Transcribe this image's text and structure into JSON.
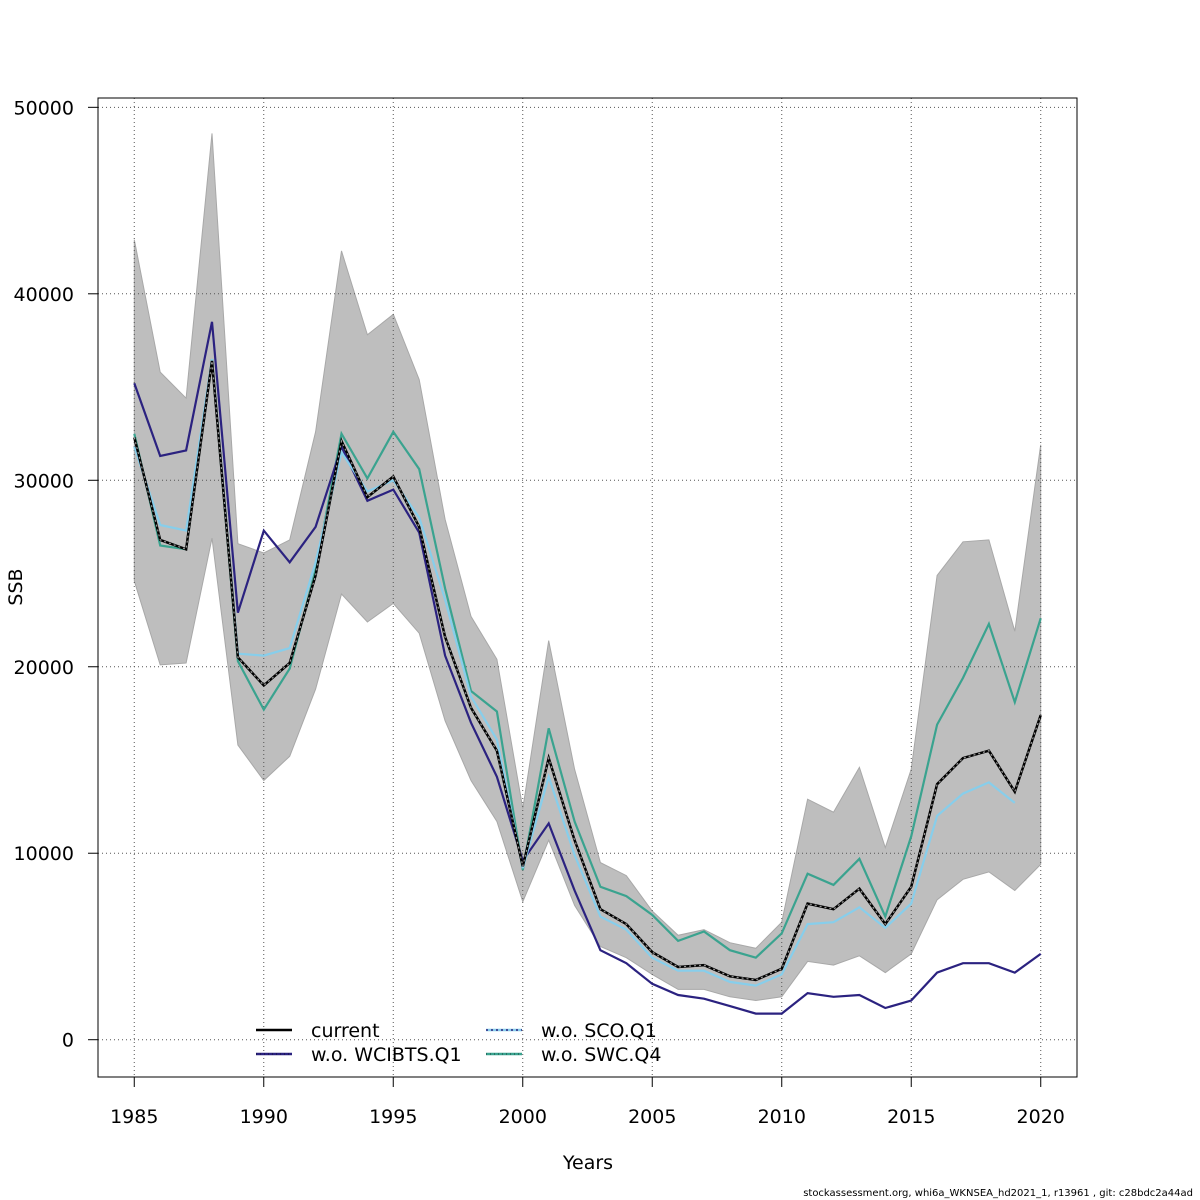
{
  "chart_data": {
    "type": "line",
    "xlabel": "Years",
    "ylabel": "SSB",
    "xlim": [
      1983.6,
      2021.4
    ],
    "ylim": [
      -2000,
      50500
    ],
    "x_ticks": [
      1985,
      1990,
      1995,
      2000,
      2005,
      2010,
      2015,
      2020
    ],
    "y_ticks": [
      0,
      10000,
      20000,
      30000,
      40000,
      50000
    ],
    "grid": true,
    "legend_position": "bottom-left",
    "x": [
      1985,
      1986,
      1987,
      1988,
      1989,
      1990,
      1991,
      1992,
      1993,
      1994,
      1995,
      1996,
      1997,
      1998,
      1999,
      2000,
      2001,
      2002,
      2003,
      2004,
      2005,
      2006,
      2007,
      2008,
      2009,
      2010,
      2011,
      2012,
      2013,
      2014,
      2015,
      2016,
      2017,
      2018,
      2019,
      2020
    ],
    "band": {
      "color": "#bebebe",
      "upper": [
        42900,
        35800,
        34400,
        48600,
        26600,
        26100,
        26800,
        32600,
        42300,
        37800,
        38900,
        35400,
        27900,
        22700,
        20400,
        12400,
        21400,
        14500,
        9500,
        8800,
        6900,
        5600,
        5900,
        5200,
        4900,
        6300,
        12900,
        12200,
        14600,
        10300,
        14500,
        24900,
        26700,
        26800,
        21900,
        31900
      ],
      "lower": [
        24600,
        20100,
        20200,
        26900,
        15800,
        13900,
        15200,
        18800,
        23900,
        22400,
        23400,
        21800,
        17100,
        13900,
        11700,
        7400,
        10700,
        7200,
        5000,
        4400,
        3500,
        2700,
        2700,
        2300,
        2100,
        2300,
        4200,
        4000,
        4500,
        3600,
        4600,
        7500,
        8600,
        9000,
        8000,
        9400
      ]
    },
    "series": [
      {
        "name": "current",
        "color": "#000000",
        "style": "solid",
        "values": [
          32300,
          26800,
          26300,
          36400,
          20500,
          19000,
          20200,
          24900,
          32100,
          29100,
          30200,
          27500,
          21600,
          17800,
          15500,
          9300,
          15100,
          10700,
          7000,
          6200,
          4700,
          3900,
          4000,
          3400,
          3200,
          3800,
          7300,
          7000,
          8100,
          6200,
          8200,
          13700,
          15100,
          15500,
          13300,
          17400
        ]
      },
      {
        "name": "w.o. WCIBTS.Q1",
        "color": "#2b2280",
        "style": "solid",
        "values": [
          35200,
          31300,
          31600,
          38500,
          22900,
          27300,
          25600,
          27500,
          31800,
          28900,
          29500,
          27200,
          20600,
          17000,
          14100,
          9600,
          11600,
          8000,
          4800,
          4100,
          3000,
          2400,
          2200,
          1800,
          1400,
          1400,
          2500,
          2300,
          2400,
          1700,
          2100,
          3600,
          4100,
          4100,
          3600,
          4600
        ]
      },
      {
        "name": "w.o. SCO.Q1",
        "color": "#87ceeb",
        "style": "dotted",
        "values": [
          31800,
          27600,
          27300,
          36500,
          20700,
          20600,
          21000,
          25600,
          31500,
          29400,
          30000,
          28000,
          23600,
          18400,
          16100,
          9200,
          14100,
          9900,
          6600,
          5900,
          4400,
          3700,
          3700,
          3100,
          2900,
          3500,
          6200,
          6300,
          7100,
          6000,
          7300,
          12000,
          13200,
          13800,
          12700,
          null
        ]
      },
      {
        "name": "w.o. SWC.Q4",
        "color": "#3aa38f",
        "style": "solid",
        "values": [
          32500,
          26500,
          26300,
          36500,
          20300,
          17700,
          19900,
          25200,
          32500,
          30100,
          32600,
          30600,
          24200,
          18700,
          17600,
          9100,
          16700,
          11700,
          8200,
          7700,
          6700,
          5300,
          5800,
          4800,
          4400,
          5700,
          8900,
          8300,
          9700,
          6600,
          10900,
          16900,
          19400,
          22300,
          18100,
          22600
        ]
      }
    ]
  },
  "footer_text": "stockassessment.org, whi6a_WKNSEA_hd2021_1, r13961 , git: c28bdc2a44ad"
}
